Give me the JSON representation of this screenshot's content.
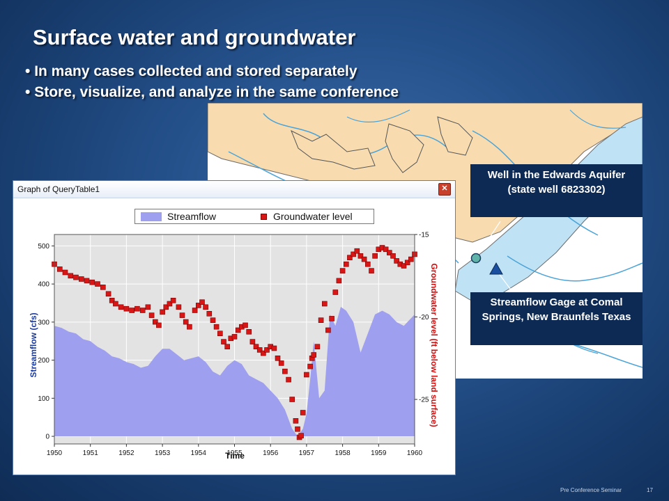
{
  "slide": {
    "title": "Surface water and groundwater",
    "bullets": [
      "In many cases collected and stored separately",
      "Store, visualize, and analyze in the same conference"
    ],
    "footer_label": "Pre Conference Seminar",
    "page_number": "17"
  },
  "map": {
    "well_callout": "Well in the Edwards Aquifer (state well 6823302)",
    "gage_callout": "Streamflow Gage at Comal Springs, New Braunfels Texas",
    "colors": {
      "land": "#f8dcb0",
      "aquifer": "#bfe2f5",
      "river": "#4aa3d8",
      "well": "#5fb3a8",
      "gage": "#1a4fa0"
    }
  },
  "window": {
    "title": "Graph of QueryTable1",
    "close_icon": "close-icon"
  },
  "chart_data": {
    "type": "area",
    "xlabel": "Time",
    "ylabel_left": "Streamflow (cfs)",
    "ylabel_right": "Groundwater level  (ft below land surface)",
    "x_ticks": [
      "1950",
      "1951",
      "1952",
      "1953",
      "1954",
      "1955",
      "1956",
      "1957",
      "1958",
      "1959",
      "1960"
    ],
    "y_left_ticks": [
      "0",
      "100",
      "200",
      "300",
      "400",
      "500"
    ],
    "y_right_ticks": [
      "-15",
      "-20",
      "-25"
    ],
    "xlim": [
      1950,
      1960
    ],
    "ylim_left": [
      -20,
      530
    ],
    "ylim_right": [
      -27.7,
      -15.0
    ],
    "grid": true,
    "legend": "top",
    "colors": {
      "streamflow": "#9f9fef",
      "groundwater": "#d81616",
      "plot_bg": "#e3e3e3"
    },
    "series": [
      {
        "name": "Streamflow",
        "kind": "area",
        "x": [
          1950.0,
          1950.2,
          1950.4,
          1950.6,
          1950.8,
          1951.0,
          1951.2,
          1951.4,
          1951.6,
          1951.8,
          1952.0,
          1952.2,
          1952.4,
          1952.6,
          1952.8,
          1953.0,
          1953.2,
          1953.4,
          1953.6,
          1953.8,
          1954.0,
          1954.2,
          1954.4,
          1954.6,
          1954.8,
          1955.0,
          1955.2,
          1955.4,
          1955.6,
          1955.8,
          1956.0,
          1956.2,
          1956.4,
          1956.6,
          1956.75,
          1956.9,
          1957.0,
          1957.1,
          1957.2,
          1957.35,
          1957.5,
          1957.65,
          1957.8,
          1957.95,
          1958.1,
          1958.3,
          1958.5,
          1958.7,
          1958.9,
          1959.1,
          1959.3,
          1959.5,
          1959.7,
          1959.9,
          1960.0
        ],
        "values": [
          290,
          285,
          275,
          270,
          255,
          250,
          235,
          225,
          210,
          205,
          195,
          190,
          180,
          185,
          210,
          230,
          230,
          215,
          200,
          205,
          210,
          195,
          170,
          160,
          185,
          200,
          190,
          160,
          150,
          140,
          120,
          100,
          70,
          20,
          0,
          20,
          60,
          150,
          250,
          100,
          120,
          320,
          290,
          340,
          330,
          300,
          220,
          270,
          320,
          330,
          320,
          300,
          290,
          310,
          320
        ]
      },
      {
        "name": "Groundwater level",
        "kind": "scatter",
        "x": [
          1950.0,
          1950.15,
          1950.3,
          1950.45,
          1950.6,
          1950.75,
          1950.9,
          1951.05,
          1951.2,
          1951.35,
          1951.5,
          1951.6,
          1951.7,
          1951.85,
          1952.0,
          1952.15,
          1952.3,
          1952.45,
          1952.6,
          1952.7,
          1952.8,
          1952.9,
          1953.0,
          1953.1,
          1953.2,
          1953.3,
          1953.45,
          1953.55,
          1953.65,
          1953.75,
          1953.9,
          1954.0,
          1954.1,
          1954.2,
          1954.3,
          1954.4,
          1954.5,
          1954.6,
          1954.7,
          1954.8,
          1954.9,
          1955.0,
          1955.1,
          1955.2,
          1955.3,
          1955.4,
          1955.5,
          1955.6,
          1955.7,
          1955.8,
          1955.9,
          1956.0,
          1956.1,
          1956.2,
          1956.3,
          1956.4,
          1956.5,
          1956.6,
          1956.7,
          1956.75,
          1956.8,
          1956.85,
          1956.9,
          1957.0,
          1957.1,
          1957.15,
          1957.2,
          1957.3,
          1957.4,
          1957.5,
          1957.6,
          1957.7,
          1957.8,
          1957.9,
          1958.0,
          1958.1,
          1958.2,
          1958.3,
          1958.4,
          1958.5,
          1958.6,
          1958.7,
          1958.8,
          1958.9,
          1959.0,
          1959.1,
          1959.2,
          1959.3,
          1959.4,
          1959.5,
          1959.6,
          1959.7,
          1959.8,
          1959.9,
          1960.0
        ],
        "values": [
          -16.8,
          -17.1,
          -17.3,
          -17.5,
          -17.6,
          -17.7,
          -17.8,
          -17.9,
          -18.0,
          -18.2,
          -18.6,
          -19.0,
          -19.2,
          -19.4,
          -19.5,
          -19.6,
          -19.5,
          -19.6,
          -19.4,
          -19.9,
          -20.3,
          -20.5,
          -19.7,
          -19.4,
          -19.2,
          -19.0,
          -19.4,
          -19.9,
          -20.3,
          -20.6,
          -19.6,
          -19.3,
          -19.1,
          -19.4,
          -19.8,
          -20.2,
          -20.6,
          -21.0,
          -21.5,
          -21.8,
          -21.3,
          -21.2,
          -20.8,
          -20.6,
          -20.5,
          -20.9,
          -21.5,
          -21.8,
          -22.0,
          -22.2,
          -22.0,
          -21.8,
          -21.9,
          -22.5,
          -22.8,
          -23.3,
          -23.8,
          -25.0,
          -26.3,
          -26.8,
          -27.3,
          -27.2,
          -25.8,
          -23.5,
          -23.0,
          -22.5,
          -22.3,
          -21.8,
          -20.2,
          -19.2,
          -20.8,
          -20.1,
          -18.5,
          -17.8,
          -17.2,
          -16.8,
          -16.4,
          -16.2,
          -16.0,
          -16.3,
          -16.5,
          -16.8,
          -17.2,
          -16.3,
          -15.9,
          -15.8,
          -15.9,
          -16.1,
          -16.3,
          -16.6,
          -16.8,
          -16.9,
          -16.7,
          -16.5,
          -16.2
        ]
      }
    ]
  }
}
